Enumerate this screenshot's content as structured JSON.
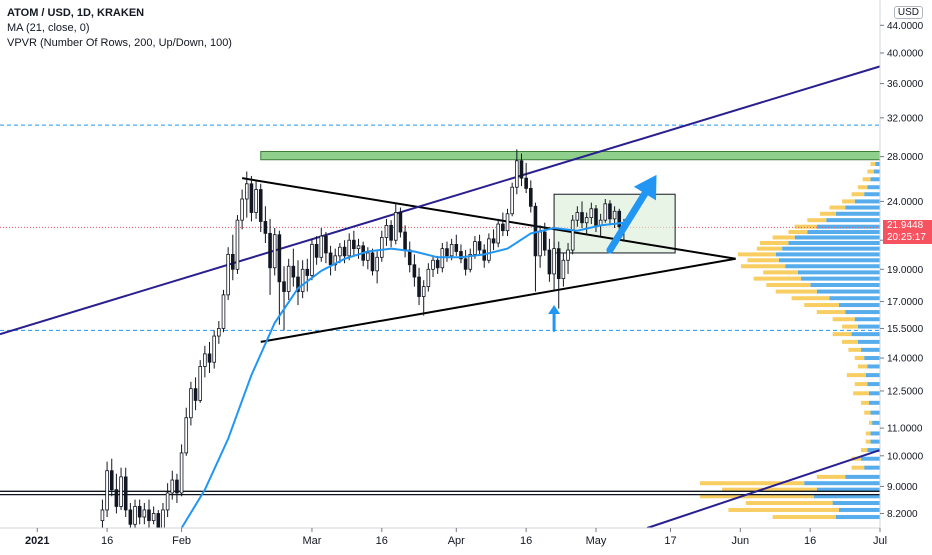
{
  "legend": {
    "symbol": "ATOM / USD, 1D, KRAKEN",
    "ma": "MA (21, close, 0)",
    "vpvr": "VPVR (Number Of Rows, 200, Up/Down, 100)"
  },
  "currency": "USD",
  "last_price": {
    "value": "21.9448",
    "countdown": "20:25:17"
  },
  "colors": {
    "up": "#ffffff",
    "down": "#131722",
    "ma": "#2196f3",
    "vp_up": "#3a9ee8",
    "vp_down": "#f7c548",
    "resistance_zone": "#8fd18c",
    "channel": "#2a1f8f",
    "accent": "#2196f3",
    "price_badge": "#f7525f"
  },
  "chart_data": {
    "type": "candlestick",
    "y_scale": "log",
    "ylim": [
      7.8,
      48
    ],
    "xlim": [
      "2020-12-24",
      "2021-07-01"
    ],
    "y_ticks": [
      "8.2000",
      "9.0000",
      "10.0000",
      "11.0000",
      "12.5000",
      "14.0000",
      "15.5000",
      "17.0000",
      "19.0000",
      "21.0000",
      "24.0000",
      "28.0000",
      "32.0000",
      "36.0000",
      "40.0000",
      "44.0000"
    ],
    "x_ticks": [
      {
        "date": "2021-01-01",
        "label": "2021"
      },
      {
        "date": "2021-01-16",
        "label": "16"
      },
      {
        "date": "2021-02-01",
        "label": "Feb"
      },
      {
        "date": "2021-03-01",
        "label": "Mar"
      },
      {
        "date": "2021-03-16",
        "label": "16"
      },
      {
        "date": "2021-04-01",
        "label": "Apr"
      },
      {
        "date": "2021-04-16",
        "label": "16"
      },
      {
        "date": "2021-05-01",
        "label": "May"
      },
      {
        "date": "2021-05-17",
        "label": "17"
      },
      {
        "date": "2021-06-01",
        "label": "Jun"
      },
      {
        "date": "2021-06-16",
        "label": "16"
      },
      {
        "date": "2021-07-01",
        "label": "Jul"
      }
    ],
    "candles": [
      [
        "2021-01-15",
        8.0,
        8.6,
        7.8,
        8.3
      ],
      [
        "2021-01-16",
        8.3,
        9.8,
        8.1,
        9.5
      ],
      [
        "2021-01-17",
        9.5,
        9.9,
        8.7,
        8.9
      ],
      [
        "2021-01-18",
        8.9,
        9.4,
        8.2,
        8.4
      ],
      [
        "2021-01-19",
        8.4,
        9.6,
        8.3,
        9.3
      ],
      [
        "2021-01-20",
        9.3,
        9.6,
        8.1,
        8.3
      ],
      [
        "2021-01-21",
        8.3,
        8.5,
        7.6,
        7.9
      ],
      [
        "2021-01-22",
        7.9,
        8.6,
        7.8,
        8.4
      ],
      [
        "2021-01-23",
        8.4,
        8.6,
        7.9,
        8.1
      ],
      [
        "2021-01-24",
        8.1,
        8.5,
        7.9,
        8.3
      ],
      [
        "2021-01-25",
        8.3,
        8.6,
        7.8,
        8.0
      ],
      [
        "2021-01-26",
        8.0,
        8.4,
        7.9,
        8.2
      ],
      [
        "2021-01-27",
        8.2,
        8.3,
        7.6,
        7.8
      ],
      [
        "2021-01-28",
        7.8,
        8.5,
        7.7,
        8.3
      ],
      [
        "2021-01-29",
        8.3,
        9.1,
        8.1,
        8.8
      ],
      [
        "2021-01-30",
        8.8,
        9.5,
        8.6,
        9.2
      ],
      [
        "2021-01-31",
        9.2,
        9.4,
        8.5,
        8.8
      ],
      [
        "2021-02-01",
        8.8,
        10.4,
        8.7,
        10.1
      ],
      [
        "2021-02-02",
        10.1,
        11.8,
        10.0,
        11.4
      ],
      [
        "2021-02-03",
        11.4,
        12.9,
        11.1,
        12.6
      ],
      [
        "2021-02-04",
        12.6,
        13.1,
        11.7,
        12.1
      ],
      [
        "2021-02-05",
        12.1,
        13.9,
        12.0,
        13.6
      ],
      [
        "2021-02-06",
        13.6,
        14.6,
        13.1,
        14.2
      ],
      [
        "2021-02-07",
        14.2,
        14.8,
        13.3,
        13.8
      ],
      [
        "2021-02-08",
        13.8,
        15.4,
        13.5,
        15.1
      ],
      [
        "2021-02-09",
        15.1,
        15.9,
        14.7,
        15.5
      ],
      [
        "2021-02-10",
        15.5,
        17.7,
        15.3,
        17.4
      ],
      [
        "2021-02-11",
        17.4,
        20.5,
        17.1,
        20.0
      ],
      [
        "2021-02-12",
        20.0,
        21.4,
        18.3,
        19.0
      ],
      [
        "2021-02-13",
        19.0,
        22.9,
        18.7,
        22.5
      ],
      [
        "2021-02-14",
        22.5,
        25.0,
        21.8,
        24.2
      ],
      [
        "2021-02-15",
        24.2,
        26.6,
        22.7,
        25.5
      ],
      [
        "2021-02-16",
        25.5,
        26.2,
        22.4,
        23.1
      ],
      [
        "2021-02-17",
        23.1,
        25.8,
        22.6,
        25.0
      ],
      [
        "2021-02-18",
        25.0,
        25.5,
        21.6,
        22.4
      ],
      [
        "2021-02-19",
        22.4,
        23.6,
        20.8,
        21.5
      ],
      [
        "2021-02-20",
        21.5,
        22.6,
        17.4,
        19.1
      ],
      [
        "2021-02-21",
        19.1,
        21.9,
        18.6,
        21.4
      ],
      [
        "2021-02-22",
        21.4,
        21.7,
        15.7,
        18.2
      ],
      [
        "2021-02-23",
        18.2,
        19.2,
        15.4,
        17.6
      ],
      [
        "2021-02-24",
        17.6,
        19.7,
        17.1,
        19.2
      ],
      [
        "2021-02-25",
        19.2,
        20.4,
        17.9,
        18.5
      ],
      [
        "2021-02-26",
        18.5,
        19.6,
        16.8,
        17.6
      ],
      [
        "2021-02-27",
        17.6,
        19.6,
        17.2,
        19.0
      ],
      [
        "2021-02-28",
        19.0,
        19.7,
        17.6,
        18.6
      ],
      [
        "2021-03-01",
        18.6,
        21.1,
        18.3,
        20.7
      ],
      [
        "2021-03-02",
        20.7,
        21.3,
        19.3,
        19.8
      ],
      [
        "2021-03-03",
        19.8,
        21.9,
        19.5,
        21.3
      ],
      [
        "2021-03-04",
        21.3,
        21.6,
        19.4,
        20.1
      ],
      [
        "2021-03-05",
        20.1,
        20.6,
        18.6,
        19.3
      ],
      [
        "2021-03-06",
        19.3,
        20.4,
        18.9,
        19.9
      ],
      [
        "2021-03-07",
        19.9,
        20.8,
        19.4,
        20.5
      ],
      [
        "2021-03-08",
        20.5,
        21.0,
        19.4,
        19.9
      ],
      [
        "2021-03-09",
        19.9,
        21.5,
        19.6,
        21.0
      ],
      [
        "2021-03-10",
        21.0,
        21.7,
        19.9,
        20.4
      ],
      [
        "2021-03-11",
        20.4,
        21.1,
        19.7,
        20.6
      ],
      [
        "2021-03-12",
        20.6,
        20.9,
        19.2,
        19.6
      ],
      [
        "2021-03-13",
        19.6,
        20.5,
        19.0,
        20.1
      ],
      [
        "2021-03-14",
        20.1,
        20.4,
        18.6,
        18.9
      ],
      [
        "2021-03-15",
        18.9,
        20.2,
        18.1,
        19.8
      ],
      [
        "2021-03-16",
        19.8,
        21.7,
        19.5,
        21.2
      ],
      [
        "2021-03-17",
        21.2,
        22.6,
        20.6,
        22.1
      ],
      [
        "2021-03-18",
        22.1,
        22.5,
        20.5,
        21.0
      ],
      [
        "2021-03-19",
        21.0,
        23.8,
        20.7,
        23.1
      ],
      [
        "2021-03-20",
        23.1,
        23.5,
        21.2,
        21.6
      ],
      [
        "2021-03-21",
        21.6,
        22.1,
        19.8,
        20.3
      ],
      [
        "2021-03-22",
        20.3,
        20.9,
        18.8,
        19.3
      ],
      [
        "2021-03-23",
        19.3,
        20.0,
        17.9,
        18.5
      ],
      [
        "2021-03-24",
        18.5,
        19.1,
        16.8,
        17.3
      ],
      [
        "2021-03-25",
        17.3,
        18.3,
        16.2,
        17.9
      ],
      [
        "2021-03-26",
        17.9,
        19.4,
        17.6,
        19.0
      ],
      [
        "2021-03-27",
        19.0,
        19.9,
        18.5,
        19.6
      ],
      [
        "2021-03-28",
        19.6,
        19.9,
        18.7,
        19.1
      ],
      [
        "2021-03-29",
        19.1,
        20.8,
        18.8,
        20.4
      ],
      [
        "2021-03-30",
        20.4,
        20.9,
        19.5,
        19.9
      ],
      [
        "2021-03-31",
        19.9,
        21.1,
        19.6,
        20.7
      ],
      [
        "2021-04-01",
        20.7,
        21.4,
        19.9,
        20.2
      ],
      [
        "2021-04-02",
        20.2,
        20.7,
        19.4,
        19.7
      ],
      [
        "2021-04-03",
        19.7,
        20.3,
        18.6,
        19.0
      ],
      [
        "2021-04-04",
        19.0,
        20.4,
        18.8,
        20.0
      ],
      [
        "2021-04-05",
        20.0,
        21.3,
        19.7,
        20.9
      ],
      [
        "2021-04-06",
        20.9,
        21.4,
        19.9,
        20.3
      ],
      [
        "2021-04-07",
        20.3,
        20.7,
        19.1,
        19.6
      ],
      [
        "2021-04-08",
        19.6,
        21.5,
        19.4,
        21.1
      ],
      [
        "2021-04-09",
        21.1,
        21.8,
        20.3,
        20.8
      ],
      [
        "2021-04-10",
        20.8,
        22.6,
        20.5,
        22.2
      ],
      [
        "2021-04-11",
        22.2,
        23.1,
        21.3,
        21.7
      ],
      [
        "2021-04-12",
        21.7,
        23.4,
        21.3,
        23.0
      ],
      [
        "2021-04-13",
        23.0,
        25.6,
        22.8,
        25.2
      ],
      [
        "2021-04-14",
        25.2,
        28.7,
        24.6,
        27.6
      ],
      [
        "2021-04-15",
        27.6,
        28.3,
        25.3,
        26.0
      ],
      [
        "2021-04-16",
        26.0,
        27.4,
        24.7,
        25.1
      ],
      [
        "2021-04-17",
        25.1,
        25.8,
        23.1,
        23.6
      ],
      [
        "2021-04-18",
        23.6,
        23.9,
        17.6,
        19.9
      ],
      [
        "2021-04-19",
        19.9,
        22.1,
        19.1,
        21.6
      ],
      [
        "2021-04-20",
        21.6,
        22.3,
        19.9,
        20.3
      ],
      [
        "2021-04-21",
        20.3,
        21.1,
        18.2,
        18.7
      ],
      [
        "2021-04-22",
        18.7,
        20.9,
        17.7,
        20.4
      ],
      [
        "2021-04-23",
        20.4,
        20.9,
        16.6,
        18.4
      ],
      [
        "2021-04-24",
        18.4,
        20.1,
        17.9,
        19.6
      ],
      [
        "2021-04-25",
        19.6,
        20.8,
        18.7,
        20.3
      ],
      [
        "2021-04-26",
        20.3,
        22.9,
        20.0,
        22.5
      ],
      [
        "2021-04-27",
        22.5,
        23.6,
        22.0,
        23.1
      ],
      [
        "2021-04-28",
        23.1,
        24.0,
        21.9,
        22.3
      ],
      [
        "2021-04-29",
        22.3,
        23.1,
        21.4,
        22.7
      ],
      [
        "2021-04-30",
        22.7,
        23.9,
        22.2,
        23.4
      ],
      [
        "2021-05-01",
        23.4,
        23.7,
        21.6,
        22.1
      ],
      [
        "2021-05-02",
        22.1,
        23.0,
        21.3,
        22.5
      ],
      [
        "2021-05-03",
        22.5,
        24.2,
        22.3,
        23.8
      ],
      [
        "2021-05-04",
        23.8,
        24.1,
        22.1,
        22.6
      ],
      [
        "2021-05-05",
        22.6,
        23.6,
        21.9,
        23.2
      ],
      [
        "2021-05-06",
        23.2,
        23.4,
        21.5,
        22.0
      ],
      [
        "2021-05-07",
        22.0,
        22.6,
        20.9,
        21.94
      ]
    ],
    "ma_21": [
      [
        "2021-02-01",
        7.8
      ],
      [
        "2021-02-06",
        8.9
      ],
      [
        "2021-02-11",
        10.6
      ],
      [
        "2021-02-16",
        13.2
      ],
      [
        "2021-02-21",
        15.8
      ],
      [
        "2021-02-26",
        17.8
      ],
      [
        "2021-03-03",
        18.9
      ],
      [
        "2021-03-08",
        19.7
      ],
      [
        "2021-03-13",
        20.2
      ],
      [
        "2021-03-18",
        20.4
      ],
      [
        "2021-03-23",
        20.2
      ],
      [
        "2021-03-28",
        19.8
      ],
      [
        "2021-04-02",
        19.8
      ],
      [
        "2021-04-07",
        20.0
      ],
      [
        "2021-04-12",
        20.4
      ],
      [
        "2021-04-17",
        21.5
      ],
      [
        "2021-04-22",
        21.9
      ],
      [
        "2021-04-27",
        21.7
      ],
      [
        "2021-05-02",
        22.1
      ],
      [
        "2021-05-07",
        22.3
      ]
    ],
    "trendlines": [
      {
        "name": "triangle-upper",
        "from": [
          "2021-02-14",
          26.0
        ],
        "to": [
          "2021-05-31",
          19.7
        ]
      },
      {
        "name": "triangle-lower",
        "from": [
          "2021-02-18",
          14.8
        ],
        "to": [
          "2021-05-31",
          19.7
        ]
      },
      {
        "name": "channel-upper",
        "from": [
          "2020-12-24",
          15.2
        ],
        "to": [
          "2021-07-01",
          38.2
        ]
      },
      {
        "name": "channel-lower",
        "from": [
          "2021-05-12",
          7.8
        ],
        "to": [
          "2021-07-01",
          10.2
        ]
      }
    ],
    "horizontal_levels": [
      {
        "name": "support-dashed",
        "value": 15.4
      },
      {
        "name": "resistance-dashed",
        "value": 31.2
      },
      {
        "name": "double-line-1",
        "value": 8.85
      },
      {
        "name": "double-line-2",
        "value": 8.75
      }
    ],
    "zones": [
      {
        "name": "resistance-zone",
        "x0": "2021-02-18",
        "x1": "2021-07-01",
        "y0": 27.7,
        "y1": 28.5
      },
      {
        "name": "consolidation-box",
        "x0": "2021-04-22",
        "x1": "2021-05-18",
        "y0": 20.1,
        "y1": 24.6
      }
    ],
    "annotations": [
      {
        "name": "breakout-arrow",
        "from": [
          "2021-05-04",
          20.3
        ],
        "to": [
          "2021-05-14",
          26.3
        ]
      },
      {
        "name": "bottom-arrow",
        "from": [
          "2021-04-22",
          15.4
        ],
        "to": [
          "2021-04-22",
          16.8
        ]
      }
    ],
    "volume_profile": [
      [
        8.1,
        28,
        40
      ],
      [
        8.3,
        26,
        70
      ],
      [
        8.5,
        30,
        55
      ],
      [
        8.7,
        42,
        72
      ],
      [
        8.9,
        40,
        60
      ],
      [
        9.1,
        48,
        66
      ],
      [
        9.3,
        22,
        18
      ],
      [
        9.6,
        10,
        8
      ],
      [
        9.9,
        12,
        6
      ],
      [
        10.2,
        8,
        4
      ],
      [
        10.5,
        6,
        3
      ],
      [
        10.8,
        6,
        3
      ],
      [
        11.2,
        5,
        2
      ],
      [
        11.6,
        6,
        4
      ],
      [
        12.0,
        7,
        5
      ],
      [
        12.4,
        7,
        10
      ],
      [
        12.8,
        8,
        8
      ],
      [
        13.2,
        9,
        12
      ],
      [
        13.6,
        8,
        6
      ],
      [
        14.0,
        10,
        6
      ],
      [
        14.4,
        12,
        8
      ],
      [
        14.8,
        14,
        10
      ],
      [
        15.2,
        18,
        12
      ],
      [
        15.6,
        14,
        10
      ],
      [
        16.0,
        16,
        14
      ],
      [
        16.4,
        22,
        18
      ],
      [
        16.8,
        26,
        22
      ],
      [
        17.2,
        32,
        24
      ],
      [
        17.6,
        40,
        26
      ],
      [
        18.0,
        44,
        28
      ],
      [
        18.4,
        50,
        30
      ],
      [
        18.8,
        52,
        22
      ],
      [
        19.2,
        60,
        28
      ],
      [
        19.6,
        64,
        20
      ],
      [
        20.0,
        66,
        24
      ],
      [
        20.4,
        62,
        16
      ],
      [
        20.8,
        58,
        18
      ],
      [
        21.2,
        54,
        14
      ],
      [
        21.6,
        46,
        12
      ],
      [
        22.0,
        40,
        14
      ],
      [
        22.5,
        34,
        12
      ],
      [
        23.0,
        28,
        10
      ],
      [
        23.5,
        22,
        10
      ],
      [
        24.0,
        16,
        8
      ],
      [
        24.6,
        10,
        8
      ],
      [
        25.2,
        8,
        6
      ],
      [
        25.9,
        6,
        5
      ],
      [
        26.6,
        4,
        4
      ],
      [
        27.3,
        3,
        3
      ]
    ]
  }
}
